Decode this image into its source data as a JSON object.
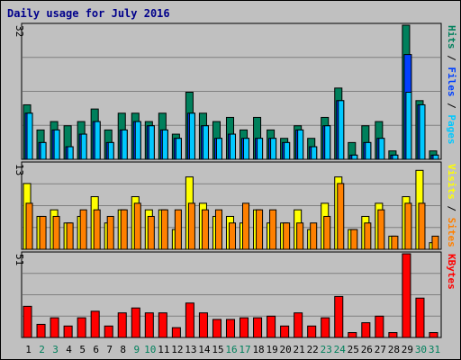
{
  "title": "Daily usage for July 2016",
  "colors": {
    "hits": "#00805c",
    "files": "#0040ff",
    "pages": "#00c8ff",
    "visits": "#ffff00",
    "sites": "#ff8000",
    "kbytes": "#ff0000",
    "weekend_label": "#00805c",
    "weekday_label": "#000000"
  },
  "chart_data": [
    {
      "type": "bar",
      "panel": "top",
      "scale_max_label": "32",
      "ymax": 32,
      "legend": [
        {
          "text": "Pages",
          "color_key": "pages"
        },
        {
          "text": " / ",
          "color_key": "weekday_label"
        },
        {
          "text": "Files",
          "color_key": "files"
        },
        {
          "text": " / ",
          "color_key": "weekday_label"
        },
        {
          "text": "Hits",
          "color_key": "hits"
        }
      ],
      "categories": [
        "1",
        "2",
        "3",
        "4",
        "5",
        "6",
        "7",
        "8",
        "9",
        "10",
        "11",
        "12",
        "13",
        "14",
        "15",
        "16",
        "17",
        "18",
        "19",
        "20",
        "21",
        "22",
        "23",
        "24",
        "25",
        "26",
        "27",
        "28",
        "29",
        "30",
        "31"
      ],
      "series": [
        {
          "name": "Hits",
          "color_key": "hits",
          "values": [
            13,
            7,
            9,
            8,
            9,
            12,
            7,
            11,
            11,
            9,
            11,
            6,
            16,
            11,
            9,
            10,
            7,
            10,
            7,
            5,
            8,
            5,
            10,
            17,
            4,
            8,
            9,
            2,
            32,
            14,
            2
          ]
        },
        {
          "name": "Files",
          "color_key": "files",
          "values": [
            11,
            4,
            7,
            3,
            6,
            9,
            4,
            7,
            9,
            8,
            7,
            5,
            11,
            8,
            5,
            6,
            5,
            5,
            5,
            4,
            7,
            3,
            8,
            14,
            1,
            4,
            5,
            1,
            25,
            13,
            1
          ]
        },
        {
          "name": "Pages",
          "color_key": "pages",
          "values": [
            11,
            4,
            7,
            3,
            6,
            9,
            4,
            7,
            9,
            8,
            7,
            5,
            11,
            8,
            5,
            6,
            5,
            5,
            5,
            4,
            7,
            3,
            8,
            14,
            1,
            4,
            5,
            1,
            16,
            13,
            1
          ]
        }
      ]
    },
    {
      "type": "bar",
      "panel": "middle",
      "scale_max_label": "13",
      "ymax": 13,
      "legend": [
        {
          "text": "Sites",
          "color_key": "sites"
        },
        {
          "text": " / ",
          "color_key": "weekday_label"
        },
        {
          "text": "Visits",
          "color_key": "visits"
        }
      ],
      "categories": [
        "1",
        "2",
        "3",
        "4",
        "5",
        "6",
        "7",
        "8",
        "9",
        "10",
        "11",
        "12",
        "13",
        "14",
        "15",
        "16",
        "17",
        "18",
        "19",
        "20",
        "21",
        "22",
        "23",
        "24",
        "25",
        "26",
        "27",
        "28",
        "29",
        "30",
        "31"
      ],
      "series": [
        {
          "name": "Visits",
          "color_key": "visits",
          "values": [
            10,
            5,
            6,
            4,
            5,
            8,
            4,
            6,
            8,
            6,
            6,
            3,
            11,
            7,
            5,
            5,
            4,
            6,
            4,
            4,
            6,
            3,
            7,
            11,
            3,
            5,
            7,
            2,
            8,
            12,
            1
          ]
        },
        {
          "name": "Sites",
          "color_key": "sites",
          "values": [
            7,
            5,
            5,
            4,
            6,
            6,
            5,
            6,
            7,
            5,
            6,
            6,
            7,
            6,
            6,
            4,
            7,
            6,
            6,
            4,
            4,
            4,
            5,
            10,
            3,
            4,
            6,
            2,
            7,
            7,
            2
          ]
        }
      ]
    },
    {
      "type": "bar",
      "panel": "bottom",
      "scale_max_label": "51",
      "ymax": 51,
      "legend": [
        {
          "text": "KBytes",
          "color_key": "kbytes"
        }
      ],
      "categories": [
        "1",
        "2",
        "3",
        "4",
        "5",
        "6",
        "7",
        "8",
        "9",
        "10",
        "11",
        "12",
        "13",
        "14",
        "15",
        "16",
        "17",
        "18",
        "19",
        "20",
        "21",
        "22",
        "23",
        "24",
        "25",
        "26",
        "27",
        "28",
        "29",
        "30",
        "31"
      ],
      "series": [
        {
          "name": "KBytes",
          "color_key": "kbytes",
          "values": [
            19,
            8,
            12,
            7,
            12,
            16,
            7,
            15,
            18,
            15,
            15,
            6,
            21,
            15,
            11,
            11,
            12,
            12,
            13,
            7,
            15,
            7,
            12,
            25,
            3,
            9,
            13,
            3,
            51,
            24,
            3
          ]
        }
      ]
    }
  ],
  "x_axis": {
    "labels": [
      "1",
      "2",
      "3",
      "4",
      "5",
      "6",
      "7",
      "8",
      "9",
      "10",
      "11",
      "12",
      "13",
      "14",
      "15",
      "16",
      "17",
      "18",
      "19",
      "20",
      "21",
      "22",
      "23",
      "24",
      "25",
      "26",
      "27",
      "28",
      "29",
      "30",
      "31"
    ],
    "weekend": [
      false,
      true,
      true,
      false,
      false,
      false,
      false,
      false,
      true,
      true,
      false,
      false,
      false,
      false,
      false,
      true,
      true,
      false,
      false,
      false,
      false,
      false,
      true,
      true,
      false,
      false,
      false,
      false,
      false,
      true,
      true
    ]
  }
}
